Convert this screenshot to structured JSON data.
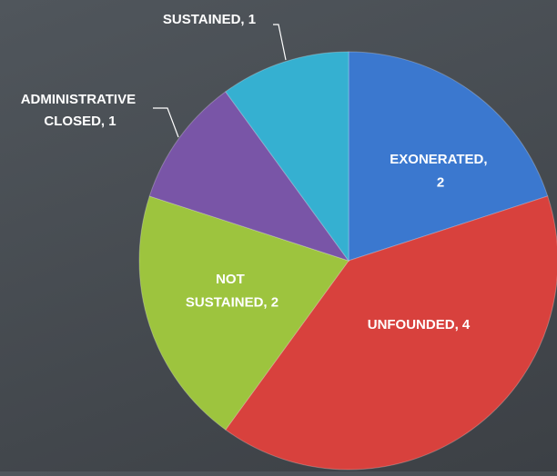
{
  "chart_data": {
    "type": "pie",
    "categories": [
      "EXONERATED, 2",
      "UNFOUNDED, 4",
      "NOT SUSTAINED, 2",
      "ADMINISTRATIVE CLOSED, 1",
      "SUSTAINED, 1"
    ],
    "values": [
      2,
      4,
      2,
      1,
      1
    ],
    "colors": [
      "#3b78cf",
      "#d8413d",
      "#9dc43e",
      "#7955a7",
      "#35b0d1"
    ]
  }
}
